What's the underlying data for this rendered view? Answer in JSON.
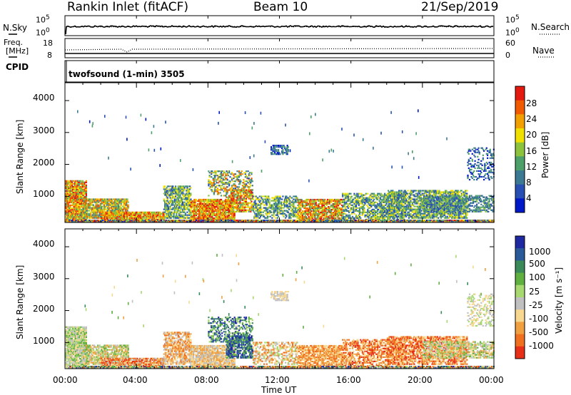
{
  "header": {
    "title": "Rankin Inlet (fitACF)",
    "beam": "Beam 10",
    "date": "21/Sep/2019"
  },
  "panels": {
    "nsky_label": "N.Sky",
    "nsky_ticks": [
      "10^5",
      "10^0"
    ],
    "nsearch_label": "N.Search",
    "nsearch_ticks": [
      "10^5",
      "10^0"
    ],
    "freq_label": "Freq.",
    "freq_unit": "[MHz]",
    "freq_ticks": [
      "18",
      "8"
    ],
    "nave_label": "Nave",
    "nave_ticks": [
      "60",
      "0"
    ],
    "cpid_label": "CPID",
    "cpid_text": "twofsound (1-min) 3505"
  },
  "chart_data": [
    {
      "type": "heatmap",
      "name": "power",
      "ylabel": "Slant Range [km]",
      "yticks": [
        "4000",
        "3000",
        "2000",
        "1000"
      ],
      "ylim": [
        180,
        4560
      ],
      "xlim": [
        "00:00",
        "24:00"
      ],
      "colorbar_label": "Power [dB]",
      "colorbar_ticks": [
        "28",
        "24",
        "20",
        "16",
        "12",
        "8",
        "4"
      ],
      "colorbar_colors": [
        "#0018c8",
        "#2850b4",
        "#3c7a94",
        "#4ea06a",
        "#8cc23c",
        "#f0e000",
        "#f2a000",
        "#f25a00",
        "#e41a10"
      ]
    },
    {
      "type": "heatmap",
      "name": "velocity",
      "ylabel": "Slant Range [km]",
      "yticks": [
        "4000",
        "3000",
        "2000",
        "1000"
      ],
      "ylim": [
        180,
        4560
      ],
      "xlim": [
        "00:00",
        "24:00"
      ],
      "colorbar_label": "Velocity [m s⁻¹]",
      "colorbar_ticks": [
        "1000",
        "500",
        "100",
        "25",
        "-25",
        "-100",
        "-500",
        "-1000"
      ],
      "colorbar_colors": [
        "#1e28a0",
        "#2a5a9a",
        "#3a8a5a",
        "#60b040",
        "#a8d870",
        "#c0c0c0",
        "#f8d890",
        "#f0a040",
        "#f07020",
        "#e83018"
      ]
    }
  ],
  "xaxis": {
    "ticks": [
      "00:00",
      "04:00",
      "08:00",
      "12:00",
      "16:00",
      "20:00",
      "00:00"
    ],
    "label": "Time UT"
  }
}
